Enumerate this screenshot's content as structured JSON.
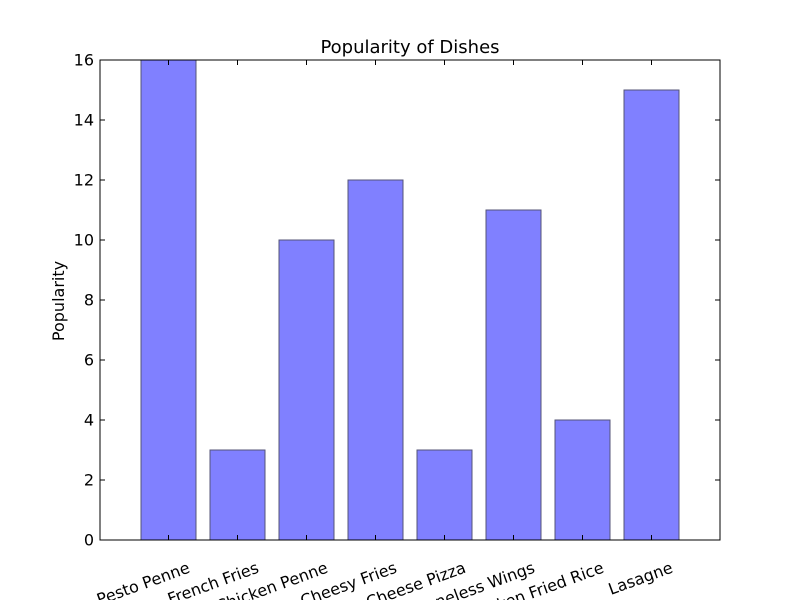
{
  "chart_data": {
    "type": "bar",
    "title": "Popularity of Dishes",
    "xlabel": "",
    "ylabel": "Popularity",
    "categories": [
      "Pesto Penne",
      "French Fries",
      "Chicken Penne",
      "Cheesy Fries",
      "Cheese Pizza",
      "Boneless Wings",
      "Chicken Fried Rice",
      "Lasagne"
    ],
    "values": [
      16,
      3,
      10,
      12,
      3,
      11,
      4,
      15
    ],
    "ylim": [
      0,
      16
    ],
    "yticks": [
      0,
      2,
      4,
      6,
      8,
      10,
      12,
      14,
      16
    ],
    "grid": false,
    "legend": "none",
    "bar_color": "#8080ff",
    "bar_edge_color": "#555577",
    "axis_color": "#000000"
  }
}
